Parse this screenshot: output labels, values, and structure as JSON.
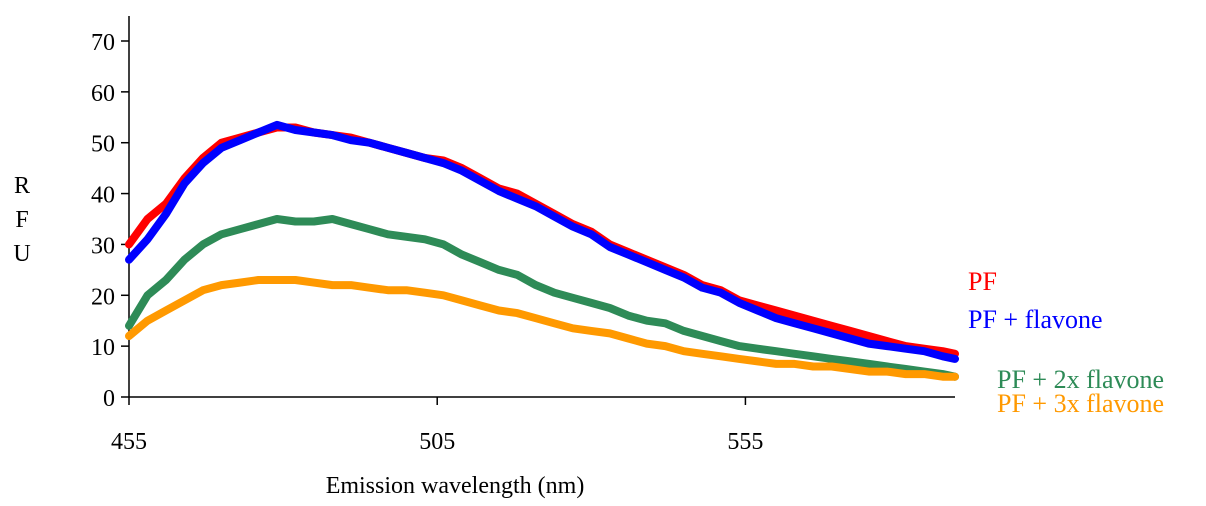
{
  "chart_data": {
    "type": "line",
    "title": "",
    "xlabel": "Emission wavelength (nm)",
    "ylabel": "RFU",
    "ylabel_chars": [
      "R",
      "F",
      "U"
    ],
    "xlim": [
      455,
      589
    ],
    "ylim": [
      0,
      70
    ],
    "xticks": [
      455,
      505,
      555
    ],
    "yticks": [
      0,
      10,
      20,
      30,
      40,
      50,
      60,
      70
    ],
    "grid": false,
    "legend": "right, labels beside line ends",
    "x": [
      455,
      458,
      461,
      464,
      467,
      470,
      473,
      476,
      479,
      482,
      485,
      488,
      491,
      494,
      497,
      500,
      503,
      506,
      509,
      512,
      515,
      518,
      521,
      524,
      527,
      530,
      533,
      536,
      539,
      542,
      545,
      548,
      551,
      554,
      557,
      560,
      563,
      566,
      569,
      572,
      575,
      578,
      581,
      584,
      587,
      589
    ],
    "series": [
      {
        "name": "PF",
        "color": "#ff0000",
        "values": [
          30,
          35,
          38,
          43,
          47,
          50,
          51,
          52,
          53,
          53,
          52,
          51.5,
          51,
          50,
          49,
          48,
          47,
          46.5,
          45,
          43,
          41,
          40,
          38,
          36,
          34,
          32.5,
          30,
          28.5,
          27,
          25.5,
          24,
          22,
          21,
          19,
          18,
          17,
          16,
          15,
          14,
          13,
          12,
          11,
          10,
          9.5,
          9,
          8.5
        ]
      },
      {
        "name": "PF + flavone",
        "color": "#0000ff",
        "values": [
          27,
          31,
          36,
          42,
          46,
          49,
          50.5,
          52,
          53.5,
          52.5,
          52,
          51.5,
          50.5,
          50,
          49,
          48,
          47,
          46,
          44.5,
          42.5,
          40.5,
          39,
          37.5,
          35.5,
          33.5,
          32,
          29.5,
          28,
          26.5,
          25,
          23.5,
          21.5,
          20.5,
          18.5,
          17,
          15.5,
          14.5,
          13.5,
          12.5,
          11.5,
          10.5,
          10,
          9.5,
          9,
          8,
          7.5
        ]
      },
      {
        "name": "PF + 2x flavone",
        "color": "#2e8b57",
        "values": [
          14,
          20,
          23,
          27,
          30,
          32,
          33,
          34,
          35,
          34.5,
          34.5,
          35,
          34,
          33,
          32,
          31.5,
          31,
          30,
          28,
          26.5,
          25,
          24,
          22,
          20.5,
          19.5,
          18.5,
          17.5,
          16,
          15,
          14.5,
          13,
          12,
          11,
          10,
          9.5,
          9,
          8.5,
          8,
          7.5,
          7,
          6.5,
          6,
          5.5,
          5,
          4.5,
          4
        ]
      },
      {
        "name": "PF + 3x flavone",
        "color": "#ff9900",
        "values": [
          12,
          15,
          17,
          19,
          21,
          22,
          22.5,
          23,
          23,
          23,
          22.5,
          22,
          22,
          21.5,
          21,
          21,
          20.5,
          20,
          19,
          18,
          17,
          16.5,
          15.5,
          14.5,
          13.5,
          13,
          12.5,
          11.5,
          10.5,
          10,
          9,
          8.5,
          8,
          7.5,
          7,
          6.5,
          6.5,
          6,
          6,
          5.5,
          5,
          5,
          4.5,
          4.5,
          4,
          4
        ]
      }
    ]
  }
}
